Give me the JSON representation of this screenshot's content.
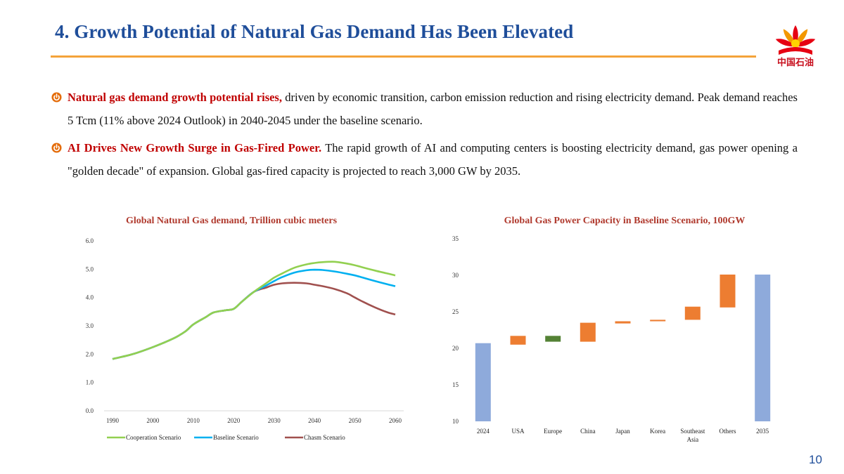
{
  "header": {
    "title": "4. Growth Potential of Natural Gas Demand Has Been Elevated",
    "logo_text": "中国石油",
    "logo_icon": "cnpc-flower-logo-icon"
  },
  "bullets": [
    {
      "lead": "Natural gas demand growth potential rises,",
      "text": " driven by economic transition, carbon emission reduction and rising electricity demand. Peak demand reaches 5 Tcm (11% above 2024 Outlook) in 2040-2045 under the baseline scenario."
    },
    {
      "lead": "AI Drives New Growth Surge in Gas-Fired Power.",
      "text": " The rapid growth of AI and computing centers is boosting electricity demand, gas power opening a \"golden decade\" of expansion. Global gas-fired capacity is projected to reach 3,000 GW by 2035."
    }
  ],
  "colors": {
    "title": "#1f4e9a",
    "accent": "#f4a33a",
    "bullet_lead": "#c00000",
    "chart_title": "#b03a2e"
  },
  "page_number": "10",
  "chart_data": [
    {
      "type": "line",
      "title": "Global Natural Gas demand, Trillion cubic meters",
      "xlabel": "",
      "ylabel": "",
      "xlim": [
        1990,
        2060
      ],
      "ylim": [
        0,
        6
      ],
      "xticks": [
        "1990",
        "2000",
        "2010",
        "2020",
        "2030",
        "2040",
        "2050",
        "2060"
      ],
      "yticks": [
        "0.0",
        "1.0",
        "2.0",
        "3.0",
        "4.0",
        "5.0",
        "6.0"
      ],
      "legend_position": "bottom",
      "series": [
        {
          "name": "Cooperation Scenario",
          "color": "#92d050",
          "x": [
            1990,
            1995,
            2000,
            2005,
            2008,
            2010,
            2013,
            2015,
            2018,
            2020,
            2022,
            2025,
            2028,
            2030,
            2032,
            2035,
            2038,
            2040,
            2042,
            2045,
            2048,
            2050,
            2052,
            2055,
            2058,
            2060
          ],
          "y": [
            1.83,
            2.0,
            2.25,
            2.55,
            2.8,
            3.05,
            3.3,
            3.47,
            3.55,
            3.6,
            3.85,
            4.2,
            4.5,
            4.7,
            4.85,
            5.05,
            5.17,
            5.22,
            5.25,
            5.26,
            5.2,
            5.14,
            5.06,
            4.95,
            4.85,
            4.78
          ]
        },
        {
          "name": "Baseline Scenario",
          "color": "#00b0f0",
          "x": [
            1990,
            1995,
            2000,
            2005,
            2008,
            2010,
            2013,
            2015,
            2018,
            2020,
            2022,
            2025,
            2028,
            2030,
            2032,
            2035,
            2038,
            2040,
            2042,
            2045,
            2048,
            2050,
            2052,
            2055,
            2058,
            2060
          ],
          "y": [
            1.83,
            2.0,
            2.25,
            2.55,
            2.8,
            3.05,
            3.3,
            3.47,
            3.55,
            3.6,
            3.85,
            4.2,
            4.42,
            4.58,
            4.72,
            4.88,
            4.96,
            4.98,
            4.97,
            4.92,
            4.84,
            4.78,
            4.7,
            4.58,
            4.47,
            4.4
          ]
        },
        {
          "name": "Chasm Scenario",
          "color": "#a0504e",
          "x": [
            1990,
            1995,
            2000,
            2005,
            2008,
            2010,
            2013,
            2015,
            2018,
            2020,
            2022,
            2025,
            2028,
            2030,
            2032,
            2035,
            2038,
            2040,
            2042,
            2045,
            2048,
            2050,
            2052,
            2055,
            2058,
            2060
          ],
          "y": [
            1.83,
            2.0,
            2.25,
            2.55,
            2.8,
            3.05,
            3.3,
            3.47,
            3.55,
            3.6,
            3.85,
            4.2,
            4.35,
            4.45,
            4.5,
            4.52,
            4.5,
            4.45,
            4.4,
            4.3,
            4.15,
            4.0,
            3.85,
            3.65,
            3.48,
            3.4
          ]
        }
      ]
    },
    {
      "type": "bar",
      "subtype": "waterfall",
      "title": "Global Gas Power Capacity in Baseline Scenario, 100GW",
      "xlabel": "",
      "ylabel": "",
      "ylim": [
        10,
        35
      ],
      "yticks": [
        "10",
        "15",
        "20",
        "25",
        "30",
        "35"
      ],
      "categories": [
        "2024",
        "USA",
        "Europe",
        "China",
        "Japan",
        "Korea",
        "Southeast Asia",
        "Others",
        "2035"
      ],
      "bars": [
        {
          "start": 10,
          "end": 20.7,
          "kind": "total",
          "color": "#8eaadb"
        },
        {
          "start": 20.5,
          "end": 21.7,
          "kind": "increase",
          "color": "#ed7d31"
        },
        {
          "start": 20.9,
          "end": 21.7,
          "kind": "decrease",
          "color": "#548235"
        },
        {
          "start": 20.9,
          "end": 23.5,
          "kind": "increase",
          "color": "#ed7d31"
        },
        {
          "start": 23.4,
          "end": 23.7,
          "kind": "increase",
          "color": "#ed7d31"
        },
        {
          "start": 23.7,
          "end": 23.9,
          "kind": "increase",
          "color": "#ed7d31"
        },
        {
          "start": 23.9,
          "end": 25.7,
          "kind": "increase",
          "color": "#ed7d31"
        },
        {
          "start": 25.6,
          "end": 30.1,
          "kind": "increase",
          "color": "#ed7d31"
        },
        {
          "start": 10,
          "end": 30.1,
          "kind": "total",
          "color": "#8eaadb"
        }
      ]
    }
  ]
}
